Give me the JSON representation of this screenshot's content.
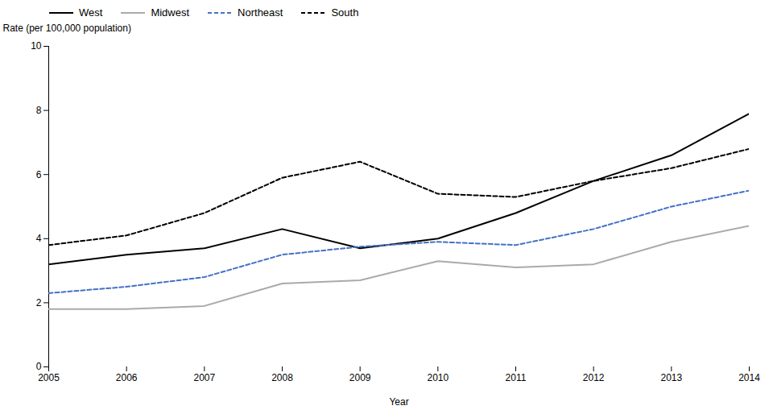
{
  "chart_data": {
    "type": "line",
    "ylabel": "Rate (per 100,000 population)",
    "xlabel": "Year",
    "x": [
      2005,
      2006,
      2007,
      2008,
      2009,
      2010,
      2011,
      2012,
      2013,
      2014
    ],
    "series": [
      {
        "name": "West",
        "color": "#000000",
        "line_style": "solid",
        "values": [
          3.2,
          3.5,
          3.7,
          4.3,
          3.7,
          4.0,
          4.8,
          5.8,
          6.6,
          7.9
        ]
      },
      {
        "name": "Midwest",
        "color": "#aaaaaa",
        "line_style": "solid",
        "values": [
          1.8,
          1.8,
          1.9,
          2.6,
          2.7,
          3.3,
          3.1,
          3.2,
          3.9,
          4.4
        ]
      },
      {
        "name": "Northeast",
        "color": "#4472c4",
        "line_style": "dashed",
        "values": [
          2.3,
          2.5,
          2.8,
          3.5,
          3.75,
          3.9,
          3.8,
          4.3,
          5.0,
          5.5
        ]
      },
      {
        "name": "South",
        "color": "#000000",
        "line_style": "dashed",
        "values": [
          3.8,
          4.1,
          4.8,
          5.9,
          6.4,
          5.4,
          5.3,
          5.8,
          6.2,
          6.8
        ]
      }
    ],
    "xlim": [
      2005,
      2014
    ],
    "xticks": [
      2005,
      2006,
      2007,
      2008,
      2009,
      2010,
      2011,
      2012,
      2013,
      2014
    ],
    "ylim": [
      0,
      10
    ],
    "yticks": [
      0,
      2,
      4,
      6,
      8,
      10
    ],
    "grid": false,
    "legend": "upper left"
  }
}
